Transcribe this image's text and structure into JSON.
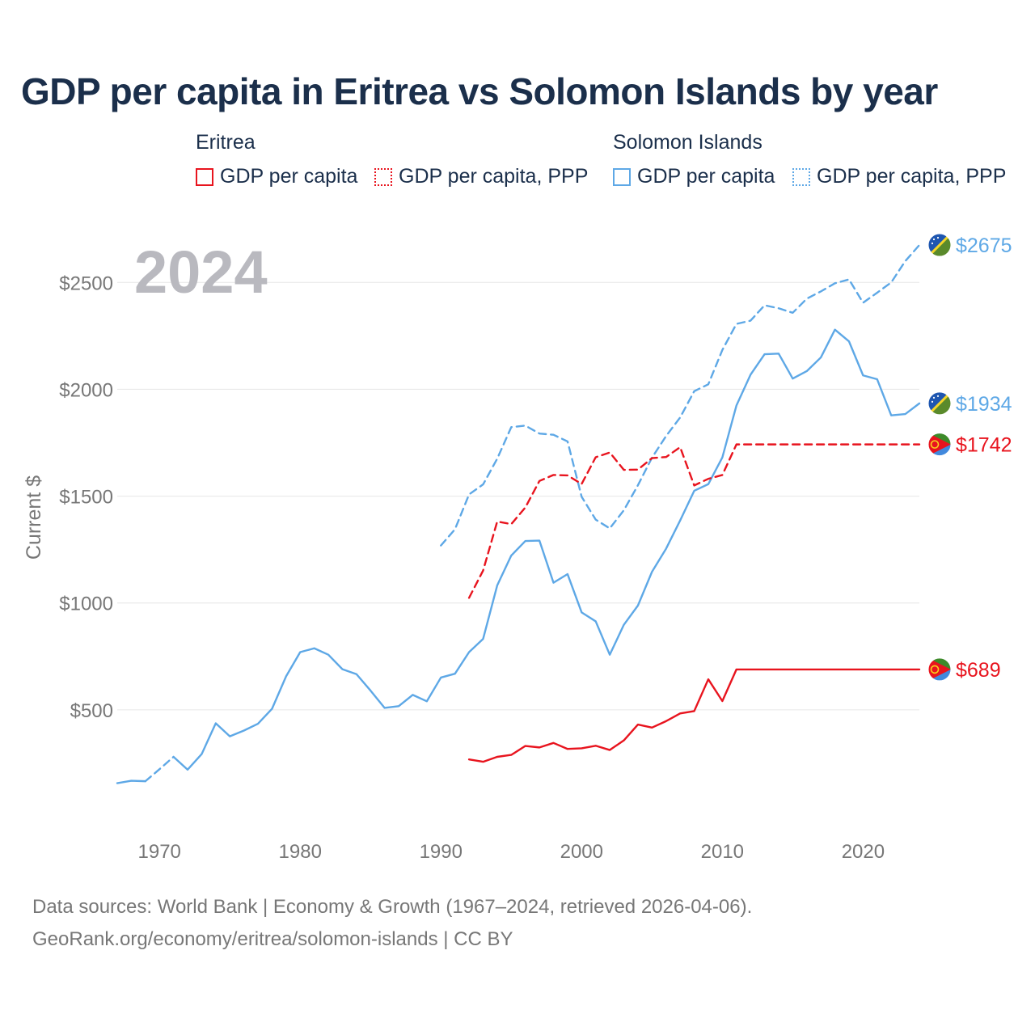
{
  "title": "GDP per capita in Eritrea vs Solomon Islands by year",
  "legend": {
    "groups": [
      {
        "name": "Eritrea",
        "color": "#e8141e",
        "items": [
          {
            "label": "GDP per capita",
            "style": "solid"
          },
          {
            "label": "GDP per capita, PPP",
            "style": "dotted"
          }
        ]
      },
      {
        "name": "Solomon Islands",
        "color": "#5ea8e6",
        "items": [
          {
            "label": "GDP per capita",
            "style": "solid"
          },
          {
            "label": "GDP per capita, PPP",
            "style": "dotted"
          }
        ]
      }
    ]
  },
  "year_label": "2024",
  "footer": {
    "line1": "Data sources: World Bank | Economy & Growth (1967–2024, retrieved 2026-04-06).",
    "line2": "GeoRank.org/economy/eritrea/solomon-islands | CC BY"
  },
  "chart_data": {
    "type": "line",
    "ylabel": "Current $",
    "xlabel": "",
    "xlim": [
      1967,
      2024
    ],
    "ylim": [
      0,
      2800
    ],
    "x_ticks": [
      1970,
      1980,
      1990,
      2000,
      2010,
      2020
    ],
    "y_ticks": [
      500,
      1000,
      1500,
      2000,
      2500
    ],
    "y_tick_labels": [
      "$500",
      "$1000",
      "$1500",
      "$2000",
      "$2500"
    ],
    "grid": true,
    "series": [
      {
        "name": "Solomon Islands GDP per capita",
        "country": "Solomon Islands",
        "color": "#5ea8e6",
        "dash": "solid",
        "end_label": "$1934",
        "end_value": 1934,
        "x": [
          1967,
          1968,
          1969,
          1970,
          1971,
          1972,
          1973,
          1974,
          1975,
          1976,
          1977,
          1978,
          1979,
          1980,
          1981,
          1982,
          1983,
          1984,
          1985,
          1986,
          1987,
          1988,
          1989,
          1990,
          1991,
          1992,
          1993,
          1994,
          1995,
          1996,
          1997,
          1998,
          1999,
          2000,
          2001,
          2002,
          2003,
          2004,
          2005,
          2006,
          2007,
          2008,
          2009,
          2010,
          2011,
          2012,
          2013,
          2014,
          2015,
          2016,
          2017,
          2018,
          2019,
          2020,
          2021,
          2022,
          2023,
          2024
        ],
        "values": [
          157,
          168,
          166,
          222,
          280,
          220,
          293,
          437,
          376,
          403,
          435,
          505,
          657,
          770,
          788,
          758,
          690,
          667,
          590,
          509,
          517,
          570,
          540,
          651,
          669,
          770,
          832,
          1082,
          1222,
          1290,
          1292,
          1095,
          1135,
          956,
          914,
          758,
          898,
          988,
          1146,
          1254,
          1386,
          1525,
          1556,
          1681,
          1924,
          2068,
          2164,
          2167,
          2050,
          2085,
          2149,
          2279,
          2224,
          2065,
          2047,
          1878,
          1884,
          1934
        ],
        "gaps": [
          [
            1969,
            1971
          ]
        ]
      },
      {
        "name": "Solomon Islands GDP per capita, PPP",
        "country": "Solomon Islands",
        "color": "#5ea8e6",
        "dash": "dashed",
        "end_label": "$2675",
        "end_value": 2675,
        "x": [
          1990,
          1991,
          1992,
          1993,
          1994,
          1995,
          1996,
          1997,
          1998,
          1999,
          2000,
          2001,
          2002,
          2003,
          2004,
          2005,
          2006,
          2007,
          2008,
          2009,
          2010,
          2011,
          2012,
          2013,
          2014,
          2015,
          2016,
          2017,
          2018,
          2019,
          2020,
          2021,
          2022,
          2023,
          2024
        ],
        "values": [
          1269,
          1345,
          1508,
          1555,
          1675,
          1823,
          1830,
          1793,
          1787,
          1756,
          1497,
          1390,
          1349,
          1434,
          1551,
          1680,
          1781,
          1868,
          1991,
          2023,
          2184,
          2306,
          2321,
          2393,
          2379,
          2358,
          2424,
          2458,
          2496,
          2514,
          2405,
          2452,
          2500,
          2600,
          2675
        ]
      },
      {
        "name": "Eritrea GDP per capita",
        "country": "Eritrea",
        "color": "#e8141e",
        "dash": "solid",
        "end_label": "$689",
        "end_value": 689,
        "x": [
          1992,
          1993,
          1994,
          1995,
          1996,
          1997,
          1998,
          1999,
          2000,
          2001,
          2002,
          2003,
          2004,
          2005,
          2006,
          2007,
          2008,
          2009,
          2010,
          2011,
          2024
        ],
        "values": [
          268,
          257,
          280,
          289,
          331,
          324,
          345,
          317,
          320,
          332,
          312,
          357,
          431,
          417,
          447,
          483,
          494,
          643,
          541,
          689,
          689
        ]
      },
      {
        "name": "Eritrea GDP per capita, PPP",
        "country": "Eritrea",
        "color": "#e8141e",
        "dash": "dashed",
        "end_label": "$1742",
        "end_value": 1742,
        "x": [
          1992,
          1993,
          1994,
          1995,
          1996,
          1997,
          1998,
          1999,
          2000,
          2001,
          2002,
          2003,
          2004,
          2005,
          2006,
          2007,
          2008,
          2009,
          2010,
          2011,
          2024
        ],
        "values": [
          1024,
          1152,
          1381,
          1369,
          1447,
          1571,
          1599,
          1597,
          1557,
          1682,
          1704,
          1623,
          1624,
          1678,
          1683,
          1729,
          1550,
          1581,
          1599,
          1742,
          1742
        ]
      }
    ]
  }
}
